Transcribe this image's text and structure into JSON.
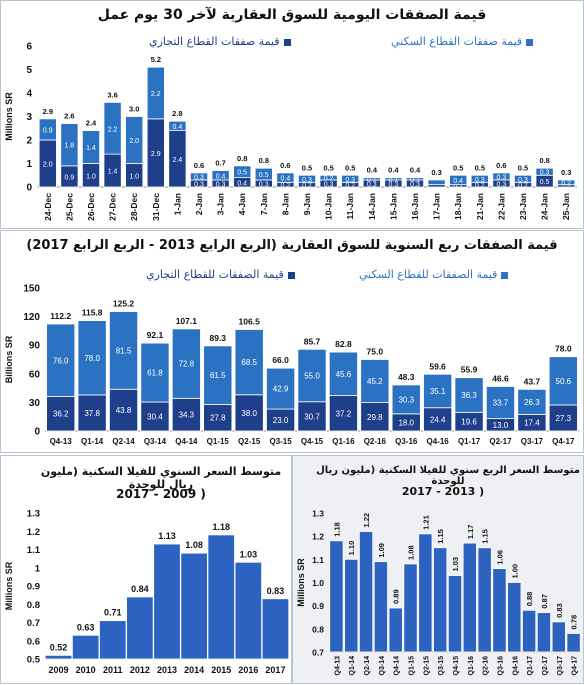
{
  "colors": {
    "commercial": "#1f3f8b",
    "residential": "#2b73c2",
    "single": "#2c62c0",
    "label_dark": "#111111",
    "label_light": "#ffffff"
  },
  "chart_data": [
    {
      "type": "bar",
      "stacked": true,
      "title": "قيمة الصفقات اليومية للسوق العقارية لآخر 30 يوم عمل",
      "ylabel": "Millions SR",
      "ylim": [
        0,
        6
      ],
      "yticks": [
        "0",
        "1",
        "2",
        "3",
        "4",
        "5",
        "6"
      ],
      "categories": [
        "24-Dec",
        "25-Dec",
        "26-Dec",
        "27-Dec",
        "28-Dec",
        "31-Dec",
        "1-Jan",
        "2-Jan",
        "3-Jan",
        "4-Jan",
        "7-Jan",
        "8-Jan",
        "9-Jan",
        "10-Jan",
        "11-Jan",
        "14-Jan",
        "15-Jan",
        "16-Jan",
        "17-Jan",
        "18-Jan",
        "21-Jan",
        "22-Jan",
        "23-Jan",
        "24-Jan",
        "25-Jan"
      ],
      "series": [
        {
          "name": "قيمة صفقات القطاع التجاري",
          "values": [
            2.0,
            0.9,
            1.0,
            1.4,
            1.0,
            2.9,
            2.4,
            0.3,
            0.3,
            0.4,
            0.3,
            0.2,
            0.2,
            0.3,
            0.2,
            0.3,
            0.3,
            0.3,
            0.1,
            0.1,
            0.2,
            0.3,
            0.2,
            0.5,
            0.1
          ]
        },
        {
          "name": "قيمة صفقات القطاع السكني",
          "values": [
            0.9,
            1.8,
            1.4,
            2.2,
            2.0,
            2.2,
            0.4,
            0.3,
            0.4,
            0.5,
            0.5,
            0.4,
            0.3,
            0.2,
            0.3,
            0.1,
            0.1,
            0.1,
            0.2,
            0.4,
            0.3,
            0.3,
            0.3,
            0.3,
            0.2
          ]
        }
      ],
      "segment_labels": [
        [
          "2.0",
          "0.9",
          "1.0",
          "1.4",
          "1.0",
          "2.9",
          "2.4",
          "0.3",
          "0.3",
          "0.4",
          "0.3",
          "0.2",
          "0.2",
          "0.3",
          "0.2",
          "0.3",
          "0.3",
          "0.3",
          "",
          "0.1",
          "0.2",
          "0.3",
          "0.2",
          "0.5",
          ""
        ],
        [
          "0.9",
          "1.8",
          "1.4",
          "2.2",
          "2.0",
          "2.2",
          "0.4",
          "0.3",
          "0.4",
          "0.5",
          "0.5",
          "0.4",
          "0.3",
          "0.2",
          "0.3",
          "0.1",
          "0.1",
          "0.1",
          "",
          "0.4",
          "0.3",
          "0.3",
          "0.3",
          "0.3",
          "0.2"
        ]
      ],
      "totals": [
        "2.9",
        "2.6",
        "2.4",
        "3.6",
        "3.0",
        "5.2",
        "2.8",
        "0.6",
        "0.7",
        "0.8",
        "0.8",
        "0.6",
        "0.5",
        "0.5",
        "0.5",
        "0.4",
        "0.4",
        "0.4",
        "0.3",
        "0.5",
        "0.5",
        "0.6",
        "0.5",
        "0.8",
        "0.3"
      ],
      "legend": "top-right"
    },
    {
      "type": "bar",
      "stacked": true,
      "title": "قيمة الصفقات ربع السنوية للسوق العقارية (الربع الرابع 2013 - الربع الرابع 2017)",
      "ylabel": "Billions SR",
      "ylim": [
        0,
        150
      ],
      "yticks": [
        "0",
        "30",
        "60",
        "90",
        "120",
        "150"
      ],
      "categories": [
        "Q4-13",
        "Q1-14",
        "Q2-14",
        "Q3-14",
        "Q4-14",
        "Q1-15",
        "Q2-15",
        "Q3-15",
        "Q4-15",
        "Q1-16",
        "Q2-16",
        "Q3-16",
        "Q4-16",
        "Q1-17",
        "Q2-17",
        "Q3-17",
        "Q4-17"
      ],
      "series": [
        {
          "name": "قيمة الصفقات للقطاع التجاري",
          "values": [
            36.2,
            37.8,
            43.8,
            30.4,
            34.3,
            27.8,
            38.0,
            23.0,
            30.7,
            37.2,
            29.8,
            18.0,
            24.4,
            19.6,
            13.0,
            17.4,
            27.3
          ]
        },
        {
          "name": "قيمة الصفقات للقطاع السكني",
          "values": [
            76.0,
            78.0,
            81.5,
            61.8,
            72.8,
            61.5,
            68.5,
            42.9,
            55.0,
            45.6,
            45.2,
            30.3,
            35.1,
            36.3,
            33.7,
            26.3,
            50.6
          ]
        }
      ],
      "segment_labels": [
        [
          "36.2",
          "37.8",
          "43.8",
          "30.4",
          "34.3",
          "27.8",
          "38.0",
          "23.0",
          "30.7",
          "37.2",
          "29.8",
          "18.0",
          "24.4",
          "19.6",
          "13.0",
          "17.4",
          "27.3"
        ],
        [
          "76.0",
          "78.0",
          "81.5",
          "61.8",
          "72.8",
          "61.5",
          "68.5",
          "42.9",
          "55.0",
          "45.6",
          "45.2",
          "30.3",
          "35.1",
          "36.3",
          "33.7",
          "26.3",
          "50.6"
        ]
      ],
      "totals": [
        "112.2",
        "115.8",
        "125.2",
        "92.1",
        "107.1",
        "89.3",
        "106.5",
        "66.0",
        "85.7",
        "82.8",
        "75.0",
        "48.3",
        "59.6",
        "55.9",
        "46.6",
        "43.7",
        "78.0"
      ],
      "legend": "top"
    },
    {
      "type": "bar",
      "title": "متوسط السعر السنوي للفيلا السكنية (مليون ريال للوحدة) 2009 - 2017",
      "title_lines": [
        "متوسط السعر السنوي للفيلا السكنية  (مليون ريال للوحدة",
        "2017 - 2009 )"
      ],
      "ylabel": "Millions SR",
      "ylim": [
        0.5,
        1.3
      ],
      "yticks": [
        "0.5",
        "0.6",
        "0.7",
        "0.8",
        "0.9",
        "1",
        "1.1",
        "1.2",
        "1.3"
      ],
      "categories": [
        "2009",
        "2010",
        "2011",
        "2012",
        "2013",
        "2014",
        "2015",
        "2016",
        "2017"
      ],
      "values": [
        0.52,
        0.63,
        0.71,
        0.84,
        1.13,
        1.08,
        1.18,
        1.03,
        0.83
      ],
      "labels": [
        "0.52",
        "0.63",
        "0.71",
        "0.84",
        "1.13",
        "1.08",
        "1.18",
        "1.03",
        "0.83"
      ]
    },
    {
      "type": "bar",
      "title": "متوسط السعر الربع سنوي للفيلا السكنية (مليون ريال للوحدة) 2013 - 2017",
      "title_lines": [
        "متوسط السعر الربع سنوي للفيلا السكنية  (مليون ريال للوحدة",
        "2017 - 2013 )"
      ],
      "ylabel": "Millions SR",
      "ylim": [
        0.7,
        1.3
      ],
      "yticks": [
        "0.7",
        "0.8",
        "0.9",
        "1.0",
        "1.1",
        "1.2",
        "1.3"
      ],
      "categories": [
        "Q4-13",
        "Q1-14",
        "Q2-14",
        "Q3-14",
        "Q4-14",
        "Q1-15",
        "Q2-15",
        "Q3-15",
        "Q4-15",
        "Q1-16",
        "Q2-16",
        "Q3-16",
        "Q4-16",
        "Q1-17",
        "Q2-17",
        "Q3-17",
        "Q4-17"
      ],
      "values": [
        1.18,
        1.1,
        1.22,
        1.09,
        0.89,
        1.08,
        1.21,
        1.15,
        1.03,
        1.17,
        1.15,
        1.06,
        1.0,
        0.88,
        0.87,
        0.83,
        0.78
      ],
      "labels": [
        "1.18",
        "1.10",
        "1.22",
        "1.09",
        "0.89",
        "1.08",
        "1.21",
        "1.15",
        "1.03",
        "1.17",
        "1.15",
        "1.06",
        "1.00",
        "0.88",
        "0.87",
        "0.83",
        "0.78"
      ]
    }
  ]
}
